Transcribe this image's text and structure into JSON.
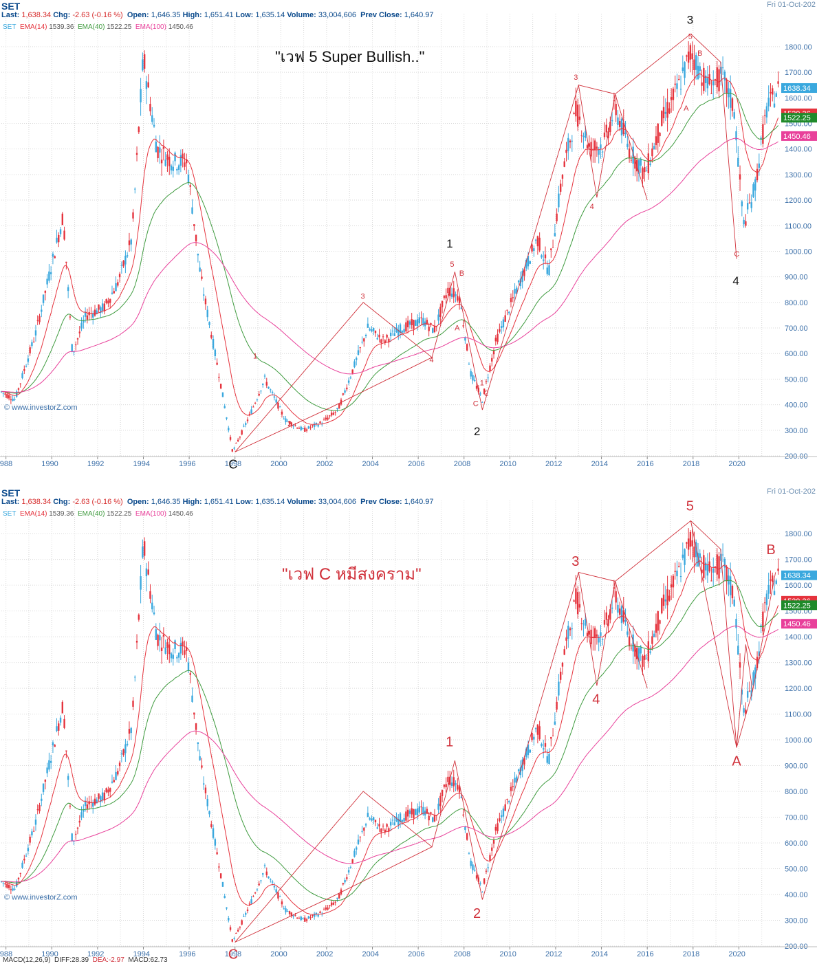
{
  "header": {
    "symbol": "SET",
    "last_label": "Last:",
    "last_value": "1,638.34",
    "chg_label": "Chg:",
    "chg_value": "-2.63 (-0.16 %)",
    "open_label": "Open:",
    "open_value": "1,646.35",
    "high_label": "High:",
    "high_value": "1,651.41",
    "low_label": "Low:",
    "low_value": "1,635.14",
    "volume_label": "Volume:",
    "volume_value": "33,004,606",
    "prev_label": "Prev Close:",
    "prev_value": "1,640.97",
    "date": "Fri 01-Oct-202",
    "ema_set": "SET",
    "ema14": "EMA(14)",
    "ema14_value": "1539.36",
    "ema40": "EMA(40)",
    "ema40_value": "1522.25",
    "ema100": "EMA(100)",
    "ema100_value": "1450.46"
  },
  "watermark": "© www.investorZ.com",
  "macd": {
    "label": "MACD(12,26,9)",
    "diff": "DIFF:28.39",
    "dea": "DEA:-2.97",
    "macd": "MACD:62.73"
  },
  "colors": {
    "up": "#3aa8de",
    "down": "#e5333d",
    "ema14": "#e5333d",
    "ema40": "#3f9b3f",
    "ema100": "#e8409a",
    "wave": "#d0303a",
    "axis_text": "#3b6fa8",
    "grid": "#d9d9d9"
  },
  "chart_data": [
    {
      "type": "candlestick",
      "title": "\"เวฟ 5 Super Bullish..\"",
      "x_ticks": [
        "1988",
        "1990",
        "1992",
        "1994",
        "1996",
        "1998",
        "2000",
        "2002",
        "2004",
        "2006",
        "2008",
        "2010",
        "2012",
        "2014",
        "2016",
        "2018",
        "2020"
      ],
      "y_ticks": [
        200,
        300,
        400,
        500,
        600,
        700,
        800,
        900,
        1000,
        1100,
        1200,
        1300,
        1400,
        1500,
        1600,
        1700,
        1800
      ],
      "ylim": [
        200,
        1900
      ],
      "price_tags": [
        {
          "value": 1638.34,
          "label": "1638.34",
          "color": "#3aa8de"
        },
        {
          "value": 1539.36,
          "label": "1539.36",
          "color": "#e5333d"
        },
        {
          "value": 1522.25,
          "label": "1522.25",
          "color": "#1f8a2a"
        },
        {
          "value": 1450.46,
          "label": "1450.46",
          "color": "#e8409a"
        }
      ],
      "wave_path": [
        [
          1998.0,
          215
        ],
        [
          2003.6,
          800
        ],
        [
          2006.6,
          585
        ],
        [
          2007.6,
          920
        ],
        [
          2008.8,
          380
        ]
      ],
      "wave_path2": [
        [
          2008.8,
          380
        ],
        [
          2013.0,
          1650
        ],
        [
          2013.8,
          1210
        ],
        [
          2014.6,
          1615
        ],
        [
          2017.9,
          1850
        ]
      ],
      "minor_waves": [
        [
          [
            1998.0,
            215
          ],
          [
            2002.2,
            390
          ],
          [
            2006.6,
            585
          ]
        ],
        [
          [
            2013.0,
            1650
          ],
          [
            2014.6,
            1615
          ],
          [
            2016.0,
            1200
          ]
        ],
        [
          [
            2017.9,
            1850
          ],
          [
            2019.2,
            1740
          ],
          [
            2019.9,
            970
          ]
        ]
      ],
      "labels": [
        {
          "text": "3",
          "x": 2017.9,
          "y": 1890,
          "color": "#111",
          "size": 17
        },
        {
          "text": "1",
          "x": 2007.4,
          "y": 1015,
          "color": "#111",
          "size": 17
        },
        {
          "text": "2",
          "x": 2008.6,
          "y": 280,
          "color": "#111",
          "size": 17
        },
        {
          "text": "4",
          "x": 2019.9,
          "y": 870,
          "color": "#111",
          "size": 17
        },
        {
          "text": "C",
          "x": 1997.9,
          "y": 150,
          "color": "#111",
          "size": 18
        },
        {
          "text": "3",
          "x": 2003.6,
          "y": 815,
          "color": "#d0303a",
          "size": 11
        },
        {
          "text": "4",
          "x": 2006.6,
          "y": 565,
          "color": "#d0303a",
          "size": 11
        },
        {
          "text": "1",
          "x": 1998.9,
          "y": 580,
          "color": "#d0303a",
          "size": 11
        },
        {
          "text": "2",
          "x": 2000.4,
          "y": 315,
          "color": "#d0303a",
          "size": 11
        },
        {
          "text": "5",
          "x": 2007.5,
          "y": 940,
          "color": "#d0303a",
          "size": 11
        },
        {
          "text": "B",
          "x": 2007.9,
          "y": 905,
          "color": "#d0303a",
          "size": 11
        },
        {
          "text": "A",
          "x": 2007.7,
          "y": 690,
          "color": "#d0303a",
          "size": 11
        },
        {
          "text": "C",
          "x": 2008.5,
          "y": 395,
          "color": "#d0303a",
          "size": 11
        },
        {
          "text": "1",
          "x": 2008.8,
          "y": 475,
          "color": "#d0303a",
          "size": 11
        },
        {
          "text": "2",
          "x": 2009.0,
          "y": 435,
          "color": "#d0303a",
          "size": 11
        },
        {
          "text": "3",
          "x": 2012.9,
          "y": 1670,
          "color": "#d0303a",
          "size": 11
        },
        {
          "text": "4",
          "x": 2013.6,
          "y": 1165,
          "color": "#d0303a",
          "size": 11
        },
        {
          "text": "5",
          "x": 2017.9,
          "y": 1830,
          "color": "#d0303a",
          "size": 11
        },
        {
          "text": "B",
          "x": 2018.3,
          "y": 1765,
          "color": "#d0303a",
          "size": 11
        },
        {
          "text": "A",
          "x": 2017.7,
          "y": 1550,
          "color": "#d0303a",
          "size": 11
        },
        {
          "text": "C",
          "x": 2019.9,
          "y": 980,
          "color": "#d0303a",
          "size": 11
        }
      ]
    },
    {
      "type": "candlestick",
      "title": "\"เวฟ C หมีสงคราม\"",
      "x_ticks": [
        "1988",
        "1990",
        "1992",
        "1994",
        "1996",
        "1998",
        "2000",
        "2002",
        "2004",
        "2006",
        "2008",
        "2010",
        "2012",
        "2014",
        "2016",
        "2018",
        "2020"
      ],
      "y_ticks": [
        200,
        300,
        400,
        500,
        600,
        700,
        800,
        900,
        1000,
        1100,
        1200,
        1300,
        1400,
        1500,
        1600,
        1700,
        1800
      ],
      "ylim": [
        200,
        1900
      ],
      "price_tags": [
        {
          "value": 1638.34,
          "label": "1638.34",
          "color": "#3aa8de"
        },
        {
          "value": 1539.36,
          "label": "1539.36",
          "color": "#e5333d"
        },
        {
          "value": 1522.25,
          "label": "1522.25",
          "color": "#1f8a2a"
        },
        {
          "value": 1450.46,
          "label": "1450.46",
          "color": "#e8409a"
        }
      ],
      "wave_path": [
        [
          1998.0,
          215
        ],
        [
          2003.6,
          800
        ],
        [
          2006.6,
          585
        ],
        [
          2007.6,
          920
        ],
        [
          2008.8,
          380
        ]
      ],
      "wave_path2": [
        [
          2008.8,
          380
        ],
        [
          2013.0,
          1650
        ],
        [
          2013.8,
          1210
        ],
        [
          2014.6,
          1615
        ],
        [
          2017.9,
          1850
        ],
        [
          2019.9,
          970
        ],
        [
          2020.6,
          1190
        ],
        [
          2021.6,
          1650
        ]
      ],
      "minor_waves": [
        [
          [
            1998.0,
            215
          ],
          [
            2002.2,
            390
          ],
          [
            2006.6,
            585
          ]
        ],
        [
          [
            2013.0,
            1650
          ],
          [
            2014.6,
            1615
          ],
          [
            2016.0,
            1200
          ]
        ],
        [
          [
            2017.9,
            1850
          ],
          [
            2019.2,
            1740
          ],
          [
            2019.9,
            970
          ]
        ],
        [
          [
            2019.9,
            970
          ],
          [
            2020.3,
            1370
          ],
          [
            2020.6,
            1190
          ]
        ]
      ],
      "labels": [
        {
          "text": "5",
          "x": 2017.9,
          "y": 1890,
          "color": "#d0303a",
          "size": 20
        },
        {
          "text": "3",
          "x": 2012.9,
          "y": 1675,
          "color": "#d0303a",
          "size": 20
        },
        {
          "text": "4",
          "x": 2013.8,
          "y": 1140,
          "color": "#d0303a",
          "size": 20
        },
        {
          "text": "1",
          "x": 2007.4,
          "y": 975,
          "color": "#d0303a",
          "size": 20
        },
        {
          "text": "2",
          "x": 2008.6,
          "y": 310,
          "color": "#d0303a",
          "size": 20
        },
        {
          "text": "A",
          "x": 2019.9,
          "y": 900,
          "color": "#d0303a",
          "size": 20
        },
        {
          "text": "B",
          "x": 2021.4,
          "y": 1720,
          "color": "#d0303a",
          "size": 20
        },
        {
          "text": "C",
          "x": 1997.9,
          "y": 150,
          "color": "#d0303a",
          "size": 20
        }
      ]
    }
  ]
}
